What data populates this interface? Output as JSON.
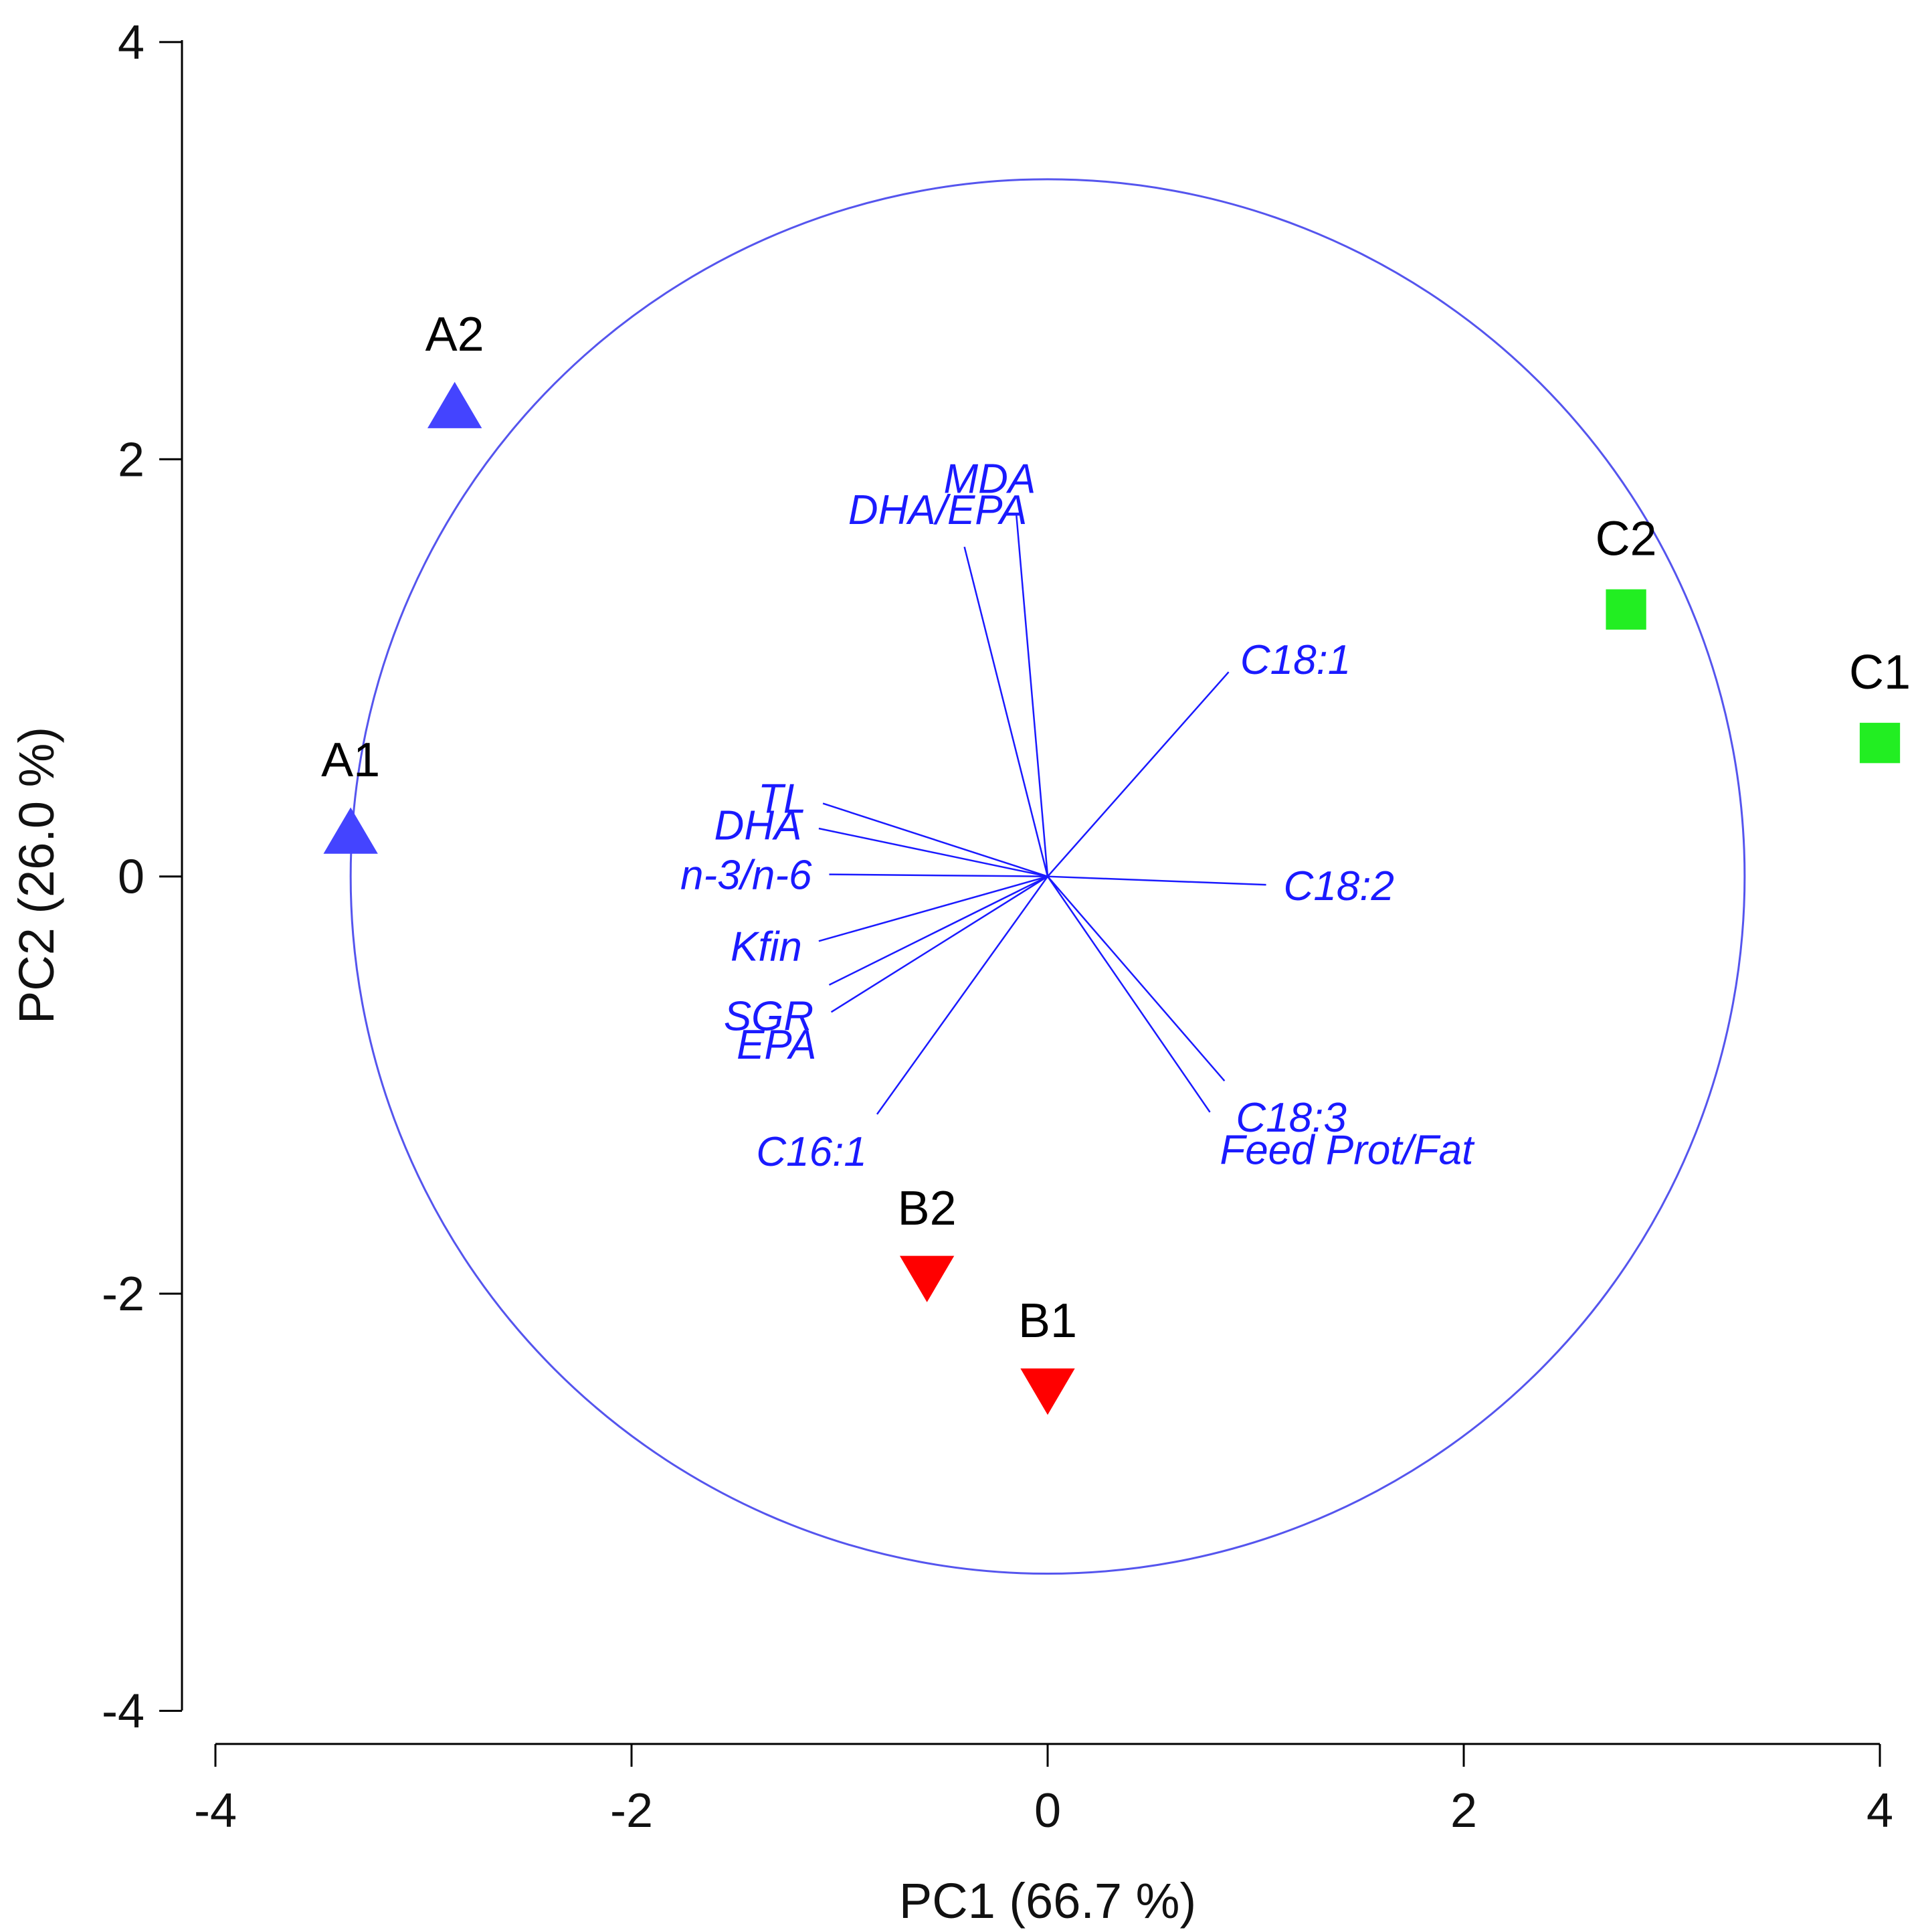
{
  "chart_data": {
    "type": "scatter",
    "title": "",
    "xlabel": "PC1 (66.7 %)",
    "ylabel": "PC2 (26.0 %)",
    "xlim": [
      -4,
      4
    ],
    "ylim": [
      -4,
      4
    ],
    "x_ticks": [
      -4,
      -2,
      0,
      2,
      4
    ],
    "y_ticks": [
      -4,
      -2,
      0,
      2,
      4
    ],
    "grid": false,
    "series": [
      {
        "name": "A",
        "marker": "triangle-up",
        "color": "#4444ff",
        "points": [
          {
            "label": "A1",
            "x": -3.35,
            "y": 0.22
          },
          {
            "label": "A2",
            "x": -2.85,
            "y": 2.26
          }
        ]
      },
      {
        "name": "B",
        "marker": "triangle-down",
        "color": "#ff0000",
        "points": [
          {
            "label": "B1",
            "x": 0.0,
            "y": -2.47
          },
          {
            "label": "B2",
            "x": -0.58,
            "y": -1.93
          }
        ]
      },
      {
        "name": "C",
        "marker": "square",
        "color": "#22ee22",
        "points": [
          {
            "label": "C1",
            "x": 4.0,
            "y": 0.64
          },
          {
            "label": "C2",
            "x": 2.78,
            "y": 1.28
          }
        ]
      }
    ],
    "correlation_circle": {
      "center": [
        0,
        0
      ],
      "radius": 3.35,
      "color": "#5555ee"
    },
    "loadings_color": "#1a1aff",
    "loadings": [
      {
        "name": "MDA",
        "x": -0.15,
        "y": 1.73
      },
      {
        "name": "DHA/EPA",
        "x": -0.4,
        "y": 1.58
      },
      {
        "name": "C18:1",
        "x": 0.87,
        "y": 0.98
      },
      {
        "name": "TL",
        "x": -1.08,
        "y": 0.35
      },
      {
        "name": "DHA",
        "x": -1.1,
        "y": 0.23
      },
      {
        "name": "n-3/n-6",
        "x": -1.05,
        "y": 0.01
      },
      {
        "name": "C18:2",
        "x": 1.05,
        "y": -0.04
      },
      {
        "name": "Kfin",
        "x": -1.1,
        "y": -0.31
      },
      {
        "name": "SGR",
        "x": -1.05,
        "y": -0.52
      },
      {
        "name": "EPA",
        "x": -1.04,
        "y": -0.65
      },
      {
        "name": "C18:3",
        "x": 0.85,
        "y": -0.98
      },
      {
        "name": "Feed Prot/Fat",
        "x": 0.78,
        "y": -1.13
      },
      {
        "name": "C16:1",
        "x": -0.82,
        "y": -1.14
      }
    ]
  }
}
